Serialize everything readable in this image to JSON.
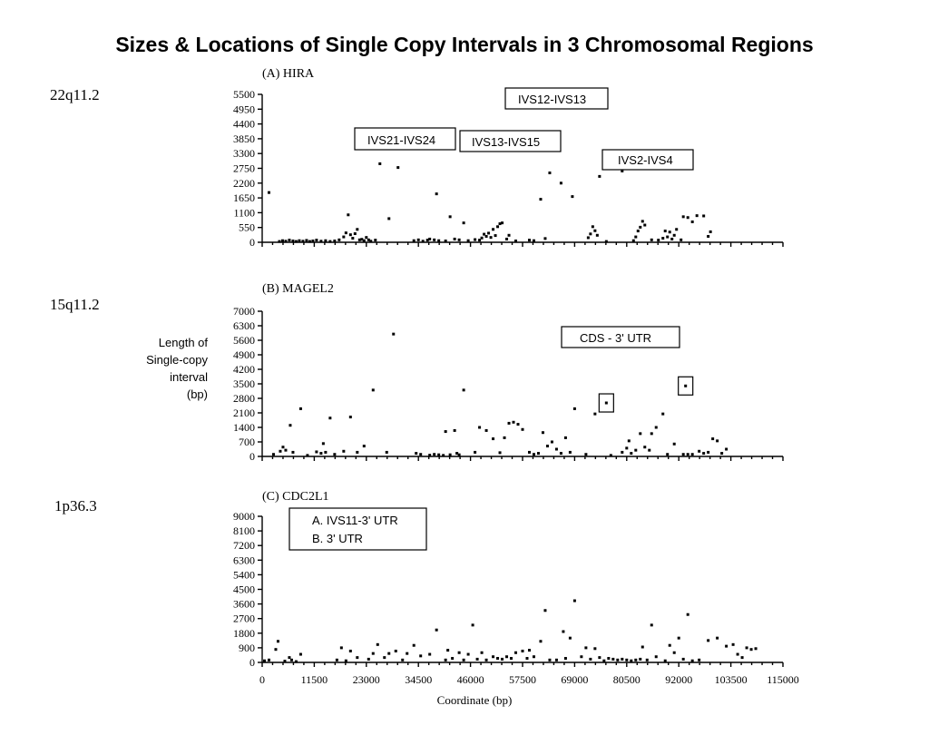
{
  "title": "Sizes & Locations of Single Copy Intervals in 3 Chromosomal Regions",
  "ylabel_lines": [
    "Length of",
    "Single-copy",
    "interval",
    "(bp)"
  ],
  "xlabel": "Coordinate (bp)",
  "xticks": [
    "0",
    "11500",
    "23000",
    "34500",
    "46000",
    "57500",
    "69000",
    "80500",
    "92000",
    "103500",
    "115000"
  ],
  "chart_data": [
    {
      "type": "scatter",
      "region": "22q11.2",
      "title": "(A) HIRA",
      "ylim": [
        0,
        5500
      ],
      "xlim": [
        0,
        115000
      ],
      "yticks": [
        "0",
        "550",
        "1100",
        "1650",
        "2200",
        "2750",
        "3300",
        "3850",
        "4400",
        "4950",
        "5500"
      ],
      "annotations": [
        {
          "text": "IVS12-IVS13",
          "boxed": true
        },
        {
          "text": "IVS21-IVS24",
          "boxed": true
        },
        {
          "text": "IVS13-IVS15",
          "boxed": true
        },
        {
          "text": "IVS2-IVS4",
          "boxed": true
        }
      ],
      "points": [
        [
          1500,
          1850
        ],
        [
          3800,
          30
        ],
        [
          4500,
          60
        ],
        [
          5200,
          40
        ],
        [
          6000,
          80
        ],
        [
          6800,
          50
        ],
        [
          7500,
          30
        ],
        [
          8200,
          60
        ],
        [
          9000,
          40
        ],
        [
          9800,
          70
        ],
        [
          10500,
          30
        ],
        [
          11200,
          50
        ],
        [
          12000,
          80
        ],
        [
          13000,
          40
        ],
        [
          14000,
          60
        ],
        [
          15000,
          30
        ],
        [
          16000,
          50
        ],
        [
          17000,
          90
        ],
        [
          18000,
          200
        ],
        [
          18500,
          350
        ],
        [
          19000,
          1020
        ],
        [
          19500,
          280
        ],
        [
          20000,
          150
        ],
        [
          20500,
          320
        ],
        [
          21000,
          480
        ],
        [
          21500,
          90
        ],
        [
          22000,
          110
        ],
        [
          22500,
          60
        ],
        [
          23000,
          180
        ],
        [
          23500,
          90
        ],
        [
          24000,
          40
        ],
        [
          25000,
          80
        ],
        [
          26000,
          2920
        ],
        [
          28000,
          880
        ],
        [
          30000,
          2780
        ],
        [
          33500,
          60
        ],
        [
          34500,
          90
        ],
        [
          35500,
          40
        ],
        [
          36500,
          80
        ],
        [
          37000,
          120
        ],
        [
          38000,
          90
        ],
        [
          38500,
          1800
        ],
        [
          39000,
          60
        ],
        [
          40500,
          50
        ],
        [
          41500,
          950
        ],
        [
          42500,
          120
        ],
        [
          43500,
          90
        ],
        [
          44500,
          720
        ],
        [
          45500,
          60
        ],
        [
          47000,
          100
        ],
        [
          48000,
          80
        ],
        [
          48500,
          160
        ],
        [
          49000,
          300
        ],
        [
          49500,
          220
        ],
        [
          50000,
          340
        ],
        [
          50500,
          180
        ],
        [
          51000,
          480
        ],
        [
          51500,
          250
        ],
        [
          52000,
          580
        ],
        [
          52500,
          690
        ],
        [
          53000,
          720
        ],
        [
          54000,
          120
        ],
        [
          54500,
          260
        ],
        [
          56000,
          50
        ],
        [
          59000,
          80
        ],
        [
          60000,
          60
        ],
        [
          61500,
          1600
        ],
        [
          62500,
          140
        ],
        [
          63500,
          2580
        ],
        [
          66000,
          2200
        ],
        [
          68500,
          1700
        ],
        [
          72000,
          170
        ],
        [
          72500,
          310
        ],
        [
          73000,
          580
        ],
        [
          73500,
          430
        ],
        [
          74000,
          260
        ],
        [
          74500,
          2450
        ],
        [
          76000,
          30
        ],
        [
          79500,
          2650
        ],
        [
          82000,
          60
        ],
        [
          82500,
          200
        ],
        [
          83000,
          420
        ],
        [
          83500,
          560
        ],
        [
          84000,
          780
        ],
        [
          84500,
          640
        ],
        [
          86000,
          90
        ],
        [
          87500,
          80
        ],
        [
          88500,
          150
        ],
        [
          89000,
          420
        ],
        [
          89500,
          200
        ],
        [
          90000,
          380
        ],
        [
          90500,
          120
        ],
        [
          91000,
          260
        ],
        [
          91500,
          480
        ],
        [
          92500,
          90
        ],
        [
          93000,
          950
        ],
        [
          94000,
          920
        ],
        [
          95000,
          760
        ],
        [
          96000,
          990
        ],
        [
          97500,
          980
        ],
        [
          98500,
          220
        ],
        [
          99000,
          390
        ]
      ]
    },
    {
      "type": "scatter",
      "region": "15q11.2",
      "title": "(B) MAGEL2",
      "ylim": [
        0,
        7000
      ],
      "xlim": [
        0,
        115000
      ],
      "yticks": [
        "0",
        "700",
        "1400",
        "2100",
        "2800",
        "3500",
        "4200",
        "4900",
        "5600",
        "6300",
        "7000"
      ],
      "annotations": [
        {
          "text": "CDS - 3' UTR",
          "boxed": true
        }
      ],
      "highlighted_points": [
        [
          76000,
          2580
        ],
        [
          93500,
          3400
        ]
      ],
      "points": [
        [
          2500,
          100
        ],
        [
          4000,
          250
        ],
        [
          4600,
          450
        ],
        [
          5200,
          300
        ],
        [
          6200,
          1500
        ],
        [
          6800,
          200
        ],
        [
          8500,
          2300
        ],
        [
          10000,
          50
        ],
        [
          12000,
          220
        ],
        [
          13000,
          150
        ],
        [
          13500,
          620
        ],
        [
          14000,
          200
        ],
        [
          15000,
          1850
        ],
        [
          16000,
          100
        ],
        [
          18000,
          250
        ],
        [
          19500,
          1900
        ],
        [
          21000,
          200
        ],
        [
          22500,
          500
        ],
        [
          24500,
          3200
        ],
        [
          27500,
          200
        ],
        [
          29000,
          5900
        ],
        [
          34000,
          150
        ],
        [
          35000,
          100
        ],
        [
          37000,
          60
        ],
        [
          38000,
          100
        ],
        [
          39000,
          80
        ],
        [
          40000,
          50
        ],
        [
          40500,
          1200
        ],
        [
          41500,
          80
        ],
        [
          42500,
          1250
        ],
        [
          43000,
          150
        ],
        [
          43500,
          80
        ],
        [
          44500,
          3200
        ],
        [
          47000,
          200
        ],
        [
          48000,
          1400
        ],
        [
          49500,
          1250
        ],
        [
          51000,
          850
        ],
        [
          52500,
          180
        ],
        [
          53500,
          900
        ],
        [
          54500,
          1600
        ],
        [
          55500,
          1650
        ],
        [
          56500,
          1550
        ],
        [
          57500,
          1300
        ],
        [
          59000,
          200
        ],
        [
          60000,
          100
        ],
        [
          61000,
          150
        ],
        [
          62000,
          1150
        ],
        [
          63000,
          500
        ],
        [
          64000,
          700
        ],
        [
          65000,
          350
        ],
        [
          66000,
          150
        ],
        [
          67000,
          900
        ],
        [
          68000,
          200
        ],
        [
          69000,
          2300
        ],
        [
          71500,
          100
        ],
        [
          73500,
          2050
        ],
        [
          77000,
          50
        ],
        [
          79500,
          200
        ],
        [
          80500,
          400
        ],
        [
          81000,
          750
        ],
        [
          81500,
          150
        ],
        [
          82500,
          300
        ],
        [
          83500,
          1100
        ],
        [
          84500,
          450
        ],
        [
          85500,
          300
        ],
        [
          86000,
          1100
        ],
        [
          87000,
          1400
        ],
        [
          88500,
          2050
        ],
        [
          89500,
          100
        ],
        [
          91000,
          600
        ],
        [
          93000,
          100
        ],
        [
          94000,
          100
        ],
        [
          95000,
          100
        ],
        [
          96500,
          250
        ],
        [
          97500,
          150
        ],
        [
          98500,
          200
        ],
        [
          99500,
          850
        ],
        [
          100500,
          750
        ],
        [
          101500,
          150
        ],
        [
          102500,
          350
        ]
      ]
    },
    {
      "type": "scatter",
      "region": "1p36.3",
      "title": "(C) CDC2L1",
      "ylim": [
        0,
        9000
      ],
      "xlim": [
        0,
        115000
      ],
      "yticks": [
        "0",
        "900",
        "1800",
        "2700",
        "3600",
        "4500",
        "5400",
        "6300",
        "7200",
        "8100",
        "9000"
      ],
      "annotations": [
        {
          "text": "A. IVS11-3' UTR",
          "boxed": true
        },
        {
          "text": "B. 3' UTR",
          "boxed": false
        }
      ],
      "points": [
        [
          500,
          100
        ],
        [
          1500,
          150
        ],
        [
          3000,
          800
        ],
        [
          3500,
          1300
        ],
        [
          5000,
          80
        ],
        [
          6000,
          300
        ],
        [
          6500,
          150
        ],
        [
          7500,
          50
        ],
        [
          8500,
          500
        ],
        [
          16500,
          150
        ],
        [
          17500,
          900
        ],
        [
          18500,
          100
        ],
        [
          19500,
          700
        ],
        [
          21000,
          300
        ],
        [
          23500,
          200
        ],
        [
          24500,
          550
        ],
        [
          25500,
          1100
        ],
        [
          27000,
          300
        ],
        [
          28000,
          550
        ],
        [
          29500,
          700
        ],
        [
          31000,
          150
        ],
        [
          32000,
          550
        ],
        [
          33500,
          1050
        ],
        [
          35000,
          400
        ],
        [
          37000,
          500
        ],
        [
          38500,
          2000
        ],
        [
          40500,
          150
        ],
        [
          41000,
          750
        ],
        [
          42000,
          250
        ],
        [
          43500,
          600
        ],
        [
          44500,
          150
        ],
        [
          45500,
          500
        ],
        [
          46500,
          2300
        ],
        [
          47500,
          200
        ],
        [
          48500,
          600
        ],
        [
          49500,
          150
        ],
        [
          51000,
          350
        ],
        [
          52000,
          250
        ],
        [
          53000,
          200
        ],
        [
          54000,
          350
        ],
        [
          55000,
          250
        ],
        [
          56000,
          600
        ],
        [
          57500,
          700
        ],
        [
          58500,
          250
        ],
        [
          59000,
          750
        ],
        [
          60000,
          350
        ],
        [
          61500,
          1300
        ],
        [
          62500,
          3200
        ],
        [
          63500,
          150
        ],
        [
          65000,
          150
        ],
        [
          66500,
          1900
        ],
        [
          67000,
          250
        ],
        [
          68000,
          1500
        ],
        [
          69000,
          3800
        ],
        [
          70500,
          350
        ],
        [
          71500,
          900
        ],
        [
          72500,
          200
        ],
        [
          73500,
          850
        ],
        [
          74500,
          300
        ],
        [
          75500,
          100
        ],
        [
          76500,
          250
        ],
        [
          77500,
          200
        ],
        [
          78500,
          150
        ],
        [
          79500,
          200
        ],
        [
          80500,
          150
        ],
        [
          81500,
          100
        ],
        [
          82500,
          150
        ],
        [
          83500,
          200
        ],
        [
          84000,
          950
        ],
        [
          85000,
          150
        ],
        [
          86000,
          2300
        ],
        [
          87000,
          350
        ],
        [
          89000,
          100
        ],
        [
          90000,
          1050
        ],
        [
          91000,
          600
        ],
        [
          92000,
          1500
        ],
        [
          93000,
          200
        ],
        [
          94000,
          2950
        ],
        [
          95000,
          100
        ],
        [
          96500,
          150
        ],
        [
          98500,
          1350
        ],
        [
          100500,
          1500
        ],
        [
          102500,
          1000
        ],
        [
          104000,
          1100
        ],
        [
          105000,
          500
        ],
        [
          106000,
          300
        ],
        [
          107000,
          900
        ],
        [
          108000,
          800
        ],
        [
          109000,
          850
        ]
      ]
    }
  ]
}
